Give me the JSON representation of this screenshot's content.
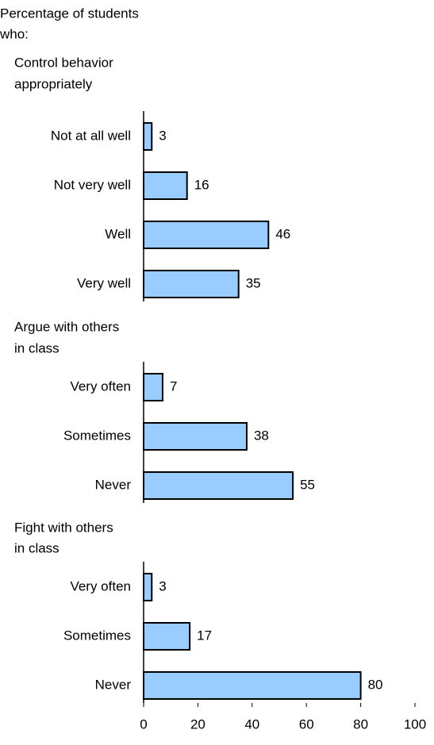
{
  "chart_data": {
    "type": "bar",
    "orientation": "horizontal",
    "title": [
      "Percentage of students",
      "who:"
    ],
    "color": "#99ccff",
    "xlim": [
      0,
      100
    ],
    "xticks": [
      0,
      20,
      40,
      60,
      80,
      100
    ],
    "panels": [
      {
        "title": [
          "Control behavior",
          "appropriately"
        ],
        "categories": [
          "Not at all well",
          "Not very well",
          "Well",
          "Very well"
        ],
        "values": [
          3,
          16,
          46,
          35
        ]
      },
      {
        "title": [
          "Argue with others",
          "in class"
        ],
        "categories": [
          "Very often",
          "Sometimes",
          "Never"
        ],
        "values": [
          7,
          38,
          55
        ]
      },
      {
        "title": [
          "Fight with others",
          "in class"
        ],
        "categories": [
          "Very often",
          "Sometimes",
          "Never"
        ],
        "values": [
          3,
          17,
          80
        ]
      }
    ]
  }
}
